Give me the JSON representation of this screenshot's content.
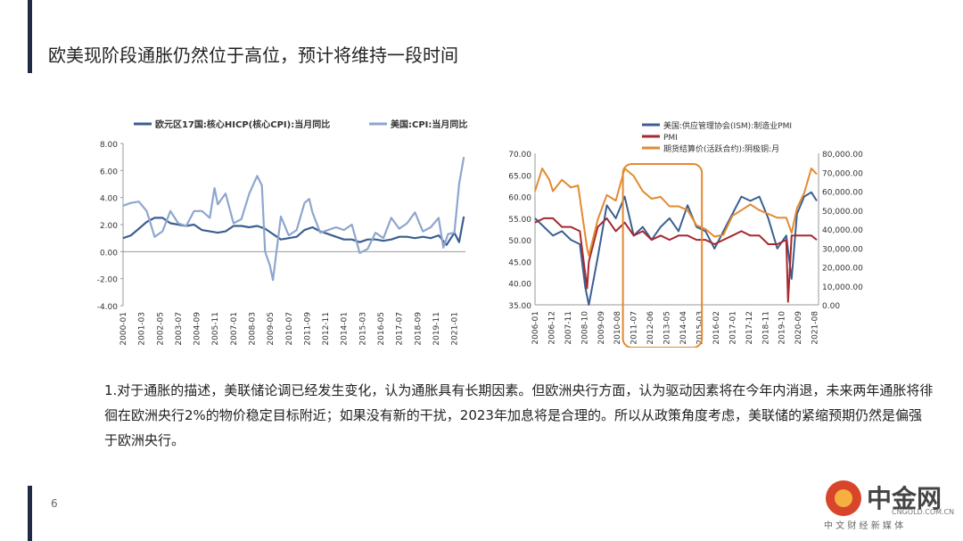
{
  "slide": {
    "title": "欧美现阶段通胀仍然位于高位，预计将维持一段时间",
    "page_number": "6",
    "body": "1.对于通胀的描述，美联储论调已经发生变化，认为通胀具有长期因素。但欧洲央行方面，认为驱动因素将在今年内消退，未来两年通胀将徘徊在欧洲央行2%的物价稳定目标附近；如果没有新的干扰，2023年加息将是合理的。所以从政策角度考虑，美联储的紧缩预期仍然是偏强于欧洲央行。"
  },
  "logo": {
    "brand": "中金网",
    "sub": "中 文 财 经 新 媒 体",
    "domain": "CNGOLD.COM.CN"
  },
  "colors": {
    "dark_blue": "#3b5f91",
    "light_blue": "#8ea6cf",
    "red": "#a5292e",
    "orange": "#e28a2f",
    "bar": "#1f2a44"
  },
  "chart_data": [
    {
      "type": "line",
      "title": "",
      "legend_placement": "top",
      "ylim": [
        -4,
        8
      ],
      "yticks": [
        "8.00",
        "6.00",
        "4.00",
        "2.00",
        "0.00",
        "-2.00",
        "-4.00"
      ],
      "xticks": [
        "2000-01",
        "2001-03",
        "2002-05",
        "2003-07",
        "2004-09",
        "2005-11",
        "2007-01",
        "2008-03",
        "2009-05",
        "2010-07",
        "2011-09",
        "2012-11",
        "2014-01",
        "2015-03",
        "2016-05",
        "2017-07",
        "2018-09",
        "2019-11",
        "2021-01"
      ],
      "x_range": [
        2000.0,
        2021.7
      ],
      "series": [
        {
          "name": "欧元区17国:核心HICP(核心CPI):当月同比",
          "color": "#3b5f91",
          "x": [
            2000.0,
            2000.5,
            2001.0,
            2001.5,
            2002.0,
            2002.5,
            2003.0,
            2003.5,
            2004.0,
            2004.5,
            2005.0,
            2005.5,
            2006.0,
            2006.5,
            2007.0,
            2007.5,
            2008.0,
            2008.5,
            2009.0,
            2009.5,
            2010.0,
            2010.5,
            2011.0,
            2011.5,
            2012.0,
            2012.5,
            2013.0,
            2013.5,
            2014.0,
            2014.5,
            2015.0,
            2015.5,
            2016.0,
            2016.5,
            2017.0,
            2017.5,
            2018.0,
            2018.5,
            2019.0,
            2019.5,
            2020.0,
            2020.5,
            2021.0,
            2021.3,
            2021.6
          ],
          "y": [
            1.0,
            1.2,
            1.7,
            2.2,
            2.5,
            2.5,
            2.1,
            2.0,
            1.9,
            2.0,
            1.6,
            1.5,
            1.4,
            1.5,
            1.9,
            1.9,
            1.8,
            1.9,
            1.7,
            1.3,
            0.9,
            1.0,
            1.1,
            1.6,
            1.8,
            1.5,
            1.3,
            1.1,
            0.9,
            0.9,
            0.7,
            0.9,
            0.9,
            0.8,
            0.9,
            1.1,
            1.1,
            1.0,
            1.1,
            1.0,
            1.2,
            0.5,
            1.4,
            0.7,
            2.6
          ]
        },
        {
          "name": "美国:CPI:当月同比",
          "color": "#8ea6cf",
          "x": [
            2000.0,
            2000.5,
            2001.0,
            2001.5,
            2002.0,
            2002.5,
            2003.0,
            2003.5,
            2004.0,
            2004.5,
            2005.0,
            2005.5,
            2005.8,
            2006.0,
            2006.5,
            2007.0,
            2007.5,
            2008.0,
            2008.5,
            2008.8,
            2009.0,
            2009.3,
            2009.5,
            2010.0,
            2010.5,
            2011.0,
            2011.5,
            2011.8,
            2012.0,
            2012.5,
            2013.0,
            2013.5,
            2014.0,
            2014.5,
            2015.0,
            2015.5,
            2016.0,
            2016.5,
            2017.0,
            2017.5,
            2018.0,
            2018.5,
            2019.0,
            2019.5,
            2020.0,
            2020.3,
            2020.6,
            2021.0,
            2021.3,
            2021.6
          ],
          "y": [
            3.4,
            3.6,
            3.7,
            3.0,
            1.1,
            1.5,
            3.0,
            2.1,
            1.9,
            3.0,
            3.0,
            2.5,
            4.7,
            3.5,
            4.3,
            2.1,
            2.4,
            4.3,
            5.6,
            4.9,
            0.0,
            -1.0,
            -2.1,
            2.6,
            1.2,
            1.6,
            3.6,
            3.9,
            2.9,
            1.4,
            1.6,
            1.8,
            1.6,
            2.0,
            -0.1,
            0.2,
            1.4,
            1.0,
            2.5,
            1.7,
            2.1,
            2.9,
            1.5,
            1.8,
            2.5,
            0.3,
            1.3,
            1.4,
            5.0,
            7.0
          ]
        }
      ]
    },
    {
      "type": "line",
      "title": "",
      "legend_placement": "top",
      "ylim_left": [
        35,
        70
      ],
      "ylim_right": [
        0,
        80000
      ],
      "yticks_left": [
        "70.00",
        "65.00",
        "60.00",
        "55.00",
        "50.00",
        "45.00",
        "40.00",
        "35.00"
      ],
      "yticks_right": [
        "80,000.00",
        "70,000.00",
        "60,000.00",
        "50,000.00",
        "40,000.00",
        "30,000.00",
        "20,000.00",
        "10,000.00",
        "0.00"
      ],
      "xticks": [
        "2006-01",
        "2006-12",
        "2007-11",
        "2008-10",
        "2009-09",
        "2010-08",
        "2011-07",
        "2012-06",
        "2013-05",
        "2014-04",
        "2015-03",
        "2016-02",
        "2017-01",
        "2017-12",
        "2018-11",
        "2019-10",
        "2020-09",
        "2021-08"
      ],
      "x_range": [
        2006.0,
        2021.8
      ],
      "series": [
        {
          "name": "美国:供应管理协会(ISM):制造业PMI",
          "color": "#3b5f91",
          "axis": "left",
          "x": [
            2006.0,
            2006.5,
            2007.0,
            2007.5,
            2008.0,
            2008.5,
            2008.8,
            2009.0,
            2009.5,
            2010.0,
            2010.5,
            2011.0,
            2011.5,
            2012.0,
            2012.5,
            2013.0,
            2013.5,
            2014.0,
            2014.5,
            2015.0,
            2015.5,
            2016.0,
            2016.5,
            2017.0,
            2017.5,
            2018.0,
            2018.5,
            2019.0,
            2019.5,
            2020.0,
            2020.3,
            2020.6,
            2021.0,
            2021.4,
            2021.7
          ],
          "y": [
            55,
            53,
            51,
            52,
            50,
            49,
            39,
            35,
            46,
            58,
            55,
            60,
            51,
            53,
            50,
            53,
            55,
            52,
            58,
            53,
            52,
            48,
            52,
            56,
            60,
            59,
            60,
            55,
            48,
            51,
            41,
            56,
            60,
            61,
            59
          ]
        },
        {
          "name": "PMI",
          "color": "#a5292e",
          "axis": "left",
          "x": [
            2006.0,
            2006.5,
            2007.0,
            2007.5,
            2008.0,
            2008.5,
            2008.9,
            2009.0,
            2009.5,
            2010.0,
            2010.5,
            2011.0,
            2011.5,
            2012.0,
            2012.5,
            2013.0,
            2013.5,
            2014.0,
            2014.5,
            2015.0,
            2015.5,
            2016.0,
            2016.5,
            2017.0,
            2017.5,
            2018.0,
            2018.5,
            2019.0,
            2019.5,
            2020.0,
            2020.1,
            2020.3,
            2020.6,
            2021.0,
            2021.4,
            2021.7
          ],
          "y": [
            54,
            55,
            55,
            53,
            53,
            52,
            38.8,
            45,
            53,
            55,
            52,
            54,
            51,
            52,
            50,
            51,
            50,
            51,
            51,
            50,
            50,
            49,
            50,
            51,
            52,
            51,
            51,
            49,
            49,
            50,
            35.7,
            51,
            51,
            51,
            51,
            50
          ]
        },
        {
          "name": "期货结算价(活跃合约):阴极铜:月",
          "color": "#e28a2f",
          "axis": "right",
          "x": [
            2006.0,
            2006.4,
            2006.8,
            2007.0,
            2007.5,
            2008.0,
            2008.4,
            2008.9,
            2009.0,
            2009.5,
            2010.0,
            2010.5,
            2011.0,
            2011.5,
            2012.0,
            2012.5,
            2013.0,
            2013.5,
            2014.0,
            2014.5,
            2015.0,
            2015.5,
            2016.0,
            2016.5,
            2017.0,
            2017.5,
            2018.0,
            2018.5,
            2019.0,
            2019.5,
            2020.0,
            2020.3,
            2020.6,
            2021.0,
            2021.4,
            2021.7
          ],
          "y": [
            60000,
            72000,
            66000,
            60000,
            66000,
            62000,
            63000,
            30000,
            26000,
            45000,
            58000,
            55000,
            72000,
            68000,
            60000,
            56000,
            57000,
            52000,
            52000,
            50000,
            42000,
            40000,
            36000,
            37000,
            47000,
            50000,
            53000,
            50000,
            48000,
            46000,
            46000,
            38000,
            51000,
            59000,
            72000,
            69000
          ]
        }
      ],
      "annotation": {
        "type": "rounded-rectangle",
        "x_start": 2010.9,
        "x_end": 2015.3
      }
    }
  ]
}
